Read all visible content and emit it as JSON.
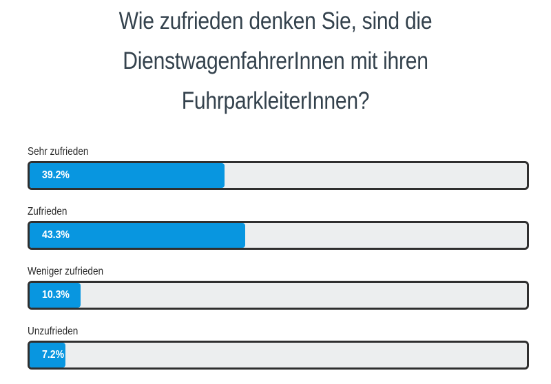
{
  "chart_data": {
    "type": "bar",
    "orientation": "horizontal",
    "title": "Wie zufrieden denken Sie, sind die DienstwagenfahrerInnen mit ihren FuhrparkleiterInnen?",
    "title_lines": [
      "Wie zufrieden denken Sie, sind die",
      "DienstwagenfahrerInnen mit ihren",
      "FuhrparkleiterInnen?"
    ],
    "categories": [
      "Sehr zufrieden",
      "Zufrieden",
      "Weniger zufrieden",
      "Unzufrieden"
    ],
    "values": [
      39.2,
      43.3,
      10.3,
      7.2
    ],
    "value_labels": [
      "39.2%",
      "43.3%",
      "10.3%",
      "7.2%"
    ],
    "unit": "%",
    "xlim": [
      0,
      100
    ],
    "grid": false,
    "legend": "none",
    "colors": {
      "bar_fill": "#0896e0",
      "track": "#eceeef",
      "border": "#2f2f2f",
      "title": "#34424d"
    }
  }
}
